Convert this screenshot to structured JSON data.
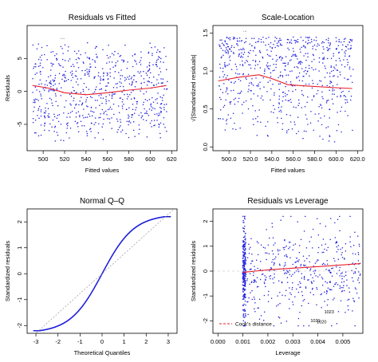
{
  "chart_data": [
    {
      "type": "scatter",
      "title": "Residuals vs Fitted",
      "xlabel": "Fitted values",
      "ylabel": "Residuals",
      "xlim": [
        485,
        625
      ],
      "ylim": [
        -9,
        10
      ],
      "xticks": [
        500,
        520,
        540,
        560,
        580,
        600,
        620
      ],
      "yticks": [
        -5,
        0,
        5
      ],
      "point_color": "#2222dd",
      "smooth_color": "#e8202a",
      "point_cloud": {
        "seed": 11,
        "n": 700,
        "x_range": [
          490,
          616
        ],
        "y_center": 0,
        "y_spread_max": 8
      },
      "smooth_line": {
        "x": [
          490,
          505,
          520,
          540,
          560,
          580,
          600,
          615
        ],
        "y": [
          0.9,
          0.5,
          -0.2,
          -0.5,
          -0.2,
          0.2,
          0.5,
          0.9
        ]
      },
      "outlier_labels": [
        {
          "x": 518,
          "y": 8,
          "text": "...."
        }
      ]
    },
    {
      "type": "scatter",
      "title": "Scale-Location",
      "xlabel": "Fitted values",
      "ylabel": "√|Standardized residuals|",
      "xlim": [
        485,
        625
      ],
      "ylim": [
        -0.05,
        1.6
      ],
      "xticks": [
        500,
        520,
        540,
        560,
        580,
        600,
        620
      ],
      "yticks": [
        0.0,
        0.5,
        1.0,
        1.5
      ],
      "point_color": "#2222dd",
      "smooth_color": "#e8202a",
      "point_cloud": {
        "seed": 23,
        "n": 700,
        "x_range": [
          490,
          616
        ],
        "y_range": [
          0.0,
          1.45
        ]
      },
      "smooth_line": {
        "x": [
          490,
          510,
          528,
          540,
          555,
          575,
          600,
          615
        ],
        "y": [
          0.87,
          0.92,
          0.95,
          0.9,
          0.82,
          0.8,
          0.78,
          0.77
        ]
      },
      "outlier_labels": [
        {
          "x": 515,
          "y": 1.52,
          "text": "..."
        }
      ]
    },
    {
      "type": "scatter",
      "title": "Normal Q–Q",
      "xlabel": "Theoretical Quantiles",
      "ylabel": "Standardized residuals",
      "xlim": [
        -3.4,
        3.4
      ],
      "ylim": [
        -2.3,
        2.5
      ],
      "xticks": [
        -3,
        -2,
        -1,
        0,
        1,
        2,
        3
      ],
      "yticks": [
        -2,
        -1,
        0,
        1,
        2
      ],
      "point_color": "#2222dd",
      "reference_line": {
        "x": [
          -3.4,
          3.4
        ],
        "y": [
          -2.6,
          2.6
        ]
      },
      "qq_curve": {
        "n": 700,
        "x_range": [
          -3.1,
          3.1
        ],
        "scale": 1.45,
        "clip": 2.2
      },
      "outlier_labels": [
        {
          "x": 3.0,
          "y": 2.2,
          "text": "..."
        }
      ]
    },
    {
      "type": "scatter",
      "title": "Residuals vs Leverage",
      "xlabel": "Leverage",
      "ylabel": "Standardized residuals",
      "xlim": [
        -0.0002,
        0.0058
      ],
      "ylim": [
        -2.5,
        2.5
      ],
      "xticks": [
        0.0,
        0.001,
        0.002,
        0.003,
        0.004,
        0.005
      ],
      "yticks": [
        -2,
        -1,
        0,
        1,
        2
      ],
      "point_color": "#2222dd",
      "smooth_color": "#e8202a",
      "point_cloud": {
        "seed": 37,
        "n": 700,
        "x_min": 0.00099,
        "x_max": 0.0057,
        "y_spread_max": 2.2
      },
      "smooth_line": {
        "x": [
          0.001,
          0.0015,
          0.002,
          0.003,
          0.004,
          0.005,
          0.0057
        ],
        "y": [
          -0.05,
          0.0,
          0.05,
          0.12,
          0.18,
          0.25,
          0.3
        ]
      },
      "outlier_labels": [
        {
          "x": 0.00445,
          "y": -1.7,
          "text": "1023"
        },
        {
          "x": 0.0039,
          "y": -2.05,
          "text": "1021"
        },
        {
          "x": 0.00415,
          "y": -2.1,
          "text": "1020"
        }
      ],
      "legend": {
        "label": "Cook's distance",
        "placement": "bottom-left"
      }
    }
  ]
}
